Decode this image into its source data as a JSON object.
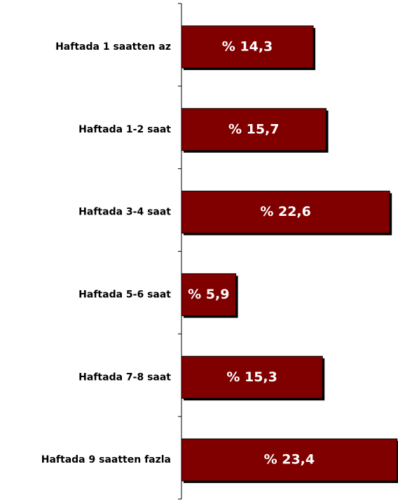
{
  "chart_data": {
    "type": "bar",
    "orientation": "horizontal",
    "categories": [
      "Haftada 1 saatten az",
      "Haftada 1-2 saat",
      "Haftada 3-4 saat",
      "Haftada 5-6 saat",
      "Haftada 7-8 saat",
      "Haftada 9 saatten fazla"
    ],
    "values": [
      14.3,
      15.7,
      22.6,
      5.9,
      15.3,
      23.4
    ],
    "value_labels": [
      "% 14,3",
      "% 15,7",
      "% 22,6",
      "% 5,9",
      "% 15,3",
      "% 23,4"
    ],
    "color": "#800000"
  }
}
